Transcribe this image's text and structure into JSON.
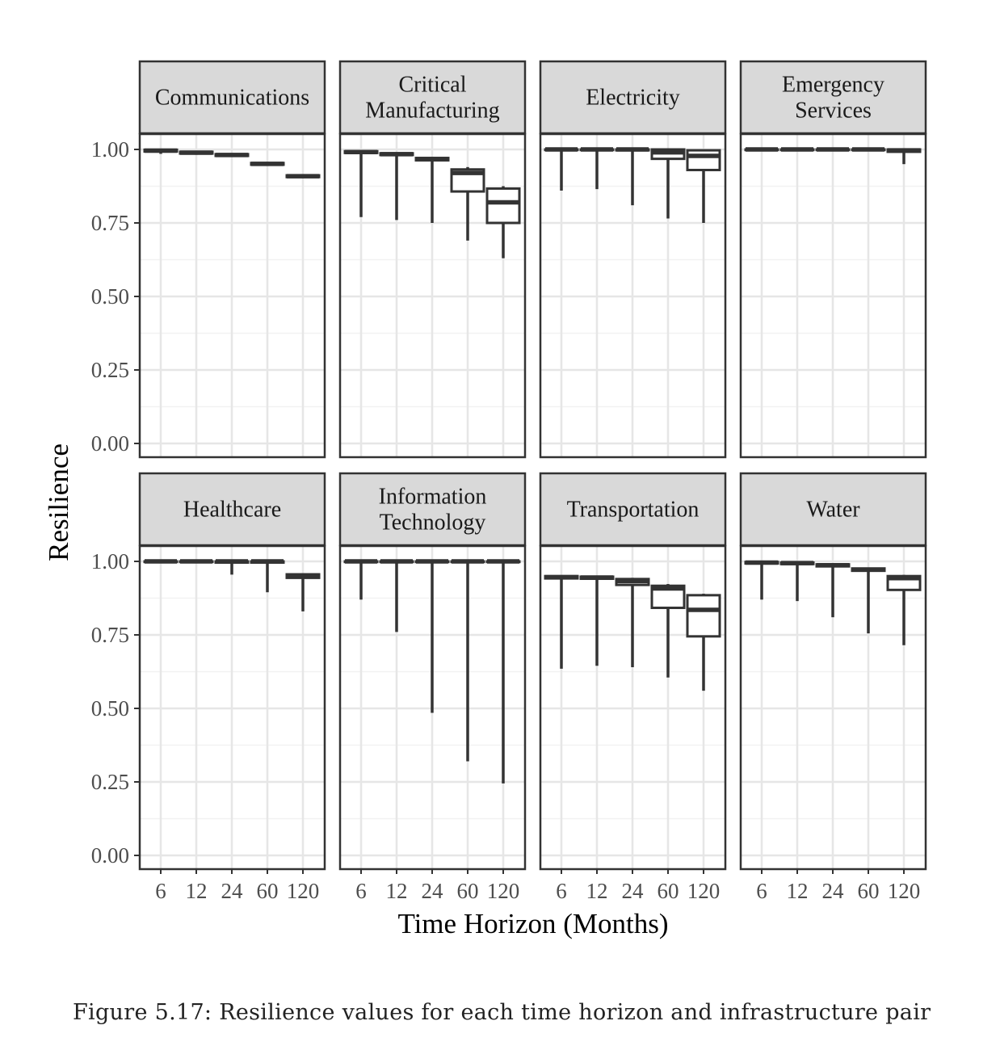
{
  "caption": "Figure 5.17: Resilience values for each time horizon and infrastructure pair",
  "chart_data": {
    "type": "boxplot",
    "xlabel": "Time Horizon (Months)",
    "ylabel": "Resilience",
    "x_categories": [
      "6",
      "12",
      "24",
      "60",
      "120"
    ],
    "y_ticks": [
      "0.00",
      "0.25",
      "0.50",
      "0.75",
      "1.00"
    ],
    "ylim": [
      -0.05,
      1.05
    ],
    "grid": true,
    "facets": [
      {
        "name": "Communications",
        "title_lines": [
          "Communications"
        ],
        "boxes": [
          {
            "x": "6",
            "min": 0.985,
            "q1": 0.993,
            "median": 0.996,
            "q3": 0.999,
            "max": 1.0
          },
          {
            "x": "12",
            "min": 0.982,
            "q1": 0.986,
            "median": 0.989,
            "q3": 0.992,
            "max": 0.994
          },
          {
            "x": "24",
            "min": 0.975,
            "q1": 0.978,
            "median": 0.981,
            "q3": 0.984,
            "max": 0.986
          },
          {
            "x": "60",
            "min": 0.945,
            "q1": 0.948,
            "median": 0.951,
            "q3": 0.954,
            "max": 0.957
          },
          {
            "x": "120",
            "min": 0.903,
            "q1": 0.906,
            "median": 0.909,
            "q3": 0.912,
            "max": 0.914
          }
        ]
      },
      {
        "name": "Critical Manufacturing",
        "title_lines": [
          "Critical",
          "Manufacturing"
        ],
        "boxes": [
          {
            "x": "6",
            "min": 0.77,
            "q1": 0.988,
            "median": 0.991,
            "q3": 0.994,
            "max": 0.996
          },
          {
            "x": "12",
            "min": 0.76,
            "q1": 0.981,
            "median": 0.984,
            "q3": 0.987,
            "max": 0.99
          },
          {
            "x": "24",
            "min": 0.75,
            "q1": 0.963,
            "median": 0.967,
            "q3": 0.971,
            "max": 0.974
          },
          {
            "x": "60",
            "min": 0.69,
            "q1": 0.857,
            "median": 0.92,
            "q3": 0.932,
            "max": 0.94
          },
          {
            "x": "120",
            "min": 0.63,
            "q1": 0.75,
            "median": 0.82,
            "q3": 0.867,
            "max": 0.875
          }
        ]
      },
      {
        "name": "Electricity",
        "title_lines": [
          "Electricity"
        ],
        "boxes": [
          {
            "x": "6",
            "min": 0.86,
            "q1": 0.998,
            "median": 1.0,
            "q3": 1.0,
            "max": 1.0
          },
          {
            "x": "12",
            "min": 0.865,
            "q1": 0.998,
            "median": 1.0,
            "q3": 1.0,
            "max": 1.0
          },
          {
            "x": "24",
            "min": 0.81,
            "q1": 0.997,
            "median": 1.0,
            "q3": 1.0,
            "max": 1.0
          },
          {
            "x": "60",
            "min": 0.765,
            "q1": 0.968,
            "median": 0.99,
            "q3": 1.0,
            "max": 1.0
          },
          {
            "x": "120",
            "min": 0.75,
            "q1": 0.93,
            "median": 0.978,
            "q3": 0.997,
            "max": 1.0
          }
        ]
      },
      {
        "name": "Emergency Services",
        "title_lines": [
          "Emergency",
          "Services"
        ],
        "boxes": [
          {
            "x": "6",
            "min": 0.998,
            "q1": 0.998,
            "median": 1.0,
            "q3": 1.0,
            "max": 1.0
          },
          {
            "x": "12",
            "min": 0.998,
            "q1": 0.998,
            "median": 1.0,
            "q3": 1.0,
            "max": 1.0
          },
          {
            "x": "24",
            "min": 0.998,
            "q1": 0.998,
            "median": 1.0,
            "q3": 1.0,
            "max": 1.0
          },
          {
            "x": "60",
            "min": 0.998,
            "q1": 0.998,
            "median": 1.0,
            "q3": 1.0,
            "max": 1.0
          },
          {
            "x": "120",
            "min": 0.95,
            "q1": 0.992,
            "median": 0.997,
            "q3": 1.0,
            "max": 1.0
          }
        ]
      },
      {
        "name": "Healthcare",
        "title_lines": [
          "Healthcare"
        ],
        "boxes": [
          {
            "x": "6",
            "min": 0.998,
            "q1": 0.998,
            "median": 1.0,
            "q3": 1.0,
            "max": 1.0
          },
          {
            "x": "12",
            "min": 0.998,
            "q1": 0.998,
            "median": 1.0,
            "q3": 1.0,
            "max": 1.0
          },
          {
            "x": "24",
            "min": 0.955,
            "q1": 0.996,
            "median": 1.0,
            "q3": 1.0,
            "max": 1.0
          },
          {
            "x": "60",
            "min": 0.895,
            "q1": 0.996,
            "median": 1.0,
            "q3": 1.0,
            "max": 1.0
          },
          {
            "x": "120",
            "min": 0.83,
            "q1": 0.944,
            "median": 0.951,
            "q3": 0.956,
            "max": 0.958
          }
        ]
      },
      {
        "name": "Information Technology",
        "title_lines": [
          "Information",
          "Technology"
        ],
        "boxes": [
          {
            "x": "6",
            "min": 0.87,
            "q1": 0.998,
            "median": 1.0,
            "q3": 1.0,
            "max": 1.0
          },
          {
            "x": "12",
            "min": 0.76,
            "q1": 0.998,
            "median": 1.0,
            "q3": 1.0,
            "max": 1.0
          },
          {
            "x": "24",
            "min": 0.485,
            "q1": 0.998,
            "median": 1.0,
            "q3": 1.0,
            "max": 1.0
          },
          {
            "x": "60",
            "min": 0.32,
            "q1": 0.998,
            "median": 1.0,
            "q3": 1.0,
            "max": 1.0
          },
          {
            "x": "120",
            "min": 0.245,
            "q1": 0.998,
            "median": 1.0,
            "q3": 1.0,
            "max": 1.0
          }
        ]
      },
      {
        "name": "Transportation",
        "title_lines": [
          "Transportation"
        ],
        "boxes": [
          {
            "x": "6",
            "min": 0.635,
            "q1": 0.942,
            "median": 0.946,
            "q3": 0.95,
            "max": 0.952
          },
          {
            "x": "12",
            "min": 0.645,
            "q1": 0.941,
            "median": 0.945,
            "q3": 0.948,
            "max": 0.95
          },
          {
            "x": "24",
            "min": 0.64,
            "q1": 0.92,
            "median": 0.933,
            "q3": 0.94,
            "max": 0.944
          },
          {
            "x": "60",
            "min": 0.605,
            "q1": 0.842,
            "median": 0.908,
            "q3": 0.917,
            "max": 0.923
          },
          {
            "x": "120",
            "min": 0.56,
            "q1": 0.745,
            "median": 0.835,
            "q3": 0.885,
            "max": 0.89
          }
        ]
      },
      {
        "name": "Water",
        "title_lines": [
          "Water"
        ],
        "boxes": [
          {
            "x": "6",
            "min": 0.87,
            "q1": 0.993,
            "median": 0.996,
            "q3": 0.998,
            "max": 1.0
          },
          {
            "x": "12",
            "min": 0.865,
            "q1": 0.991,
            "median": 0.994,
            "q3": 0.996,
            "max": 0.998
          },
          {
            "x": "24",
            "min": 0.81,
            "q1": 0.983,
            "median": 0.987,
            "q3": 0.99,
            "max": 0.993
          },
          {
            "x": "60",
            "min": 0.755,
            "q1": 0.968,
            "median": 0.972,
            "q3": 0.976,
            "max": 0.979
          },
          {
            "x": "120",
            "min": 0.715,
            "q1": 0.903,
            "median": 0.943,
            "q3": 0.95,
            "max": 0.954
          }
        ]
      }
    ]
  }
}
